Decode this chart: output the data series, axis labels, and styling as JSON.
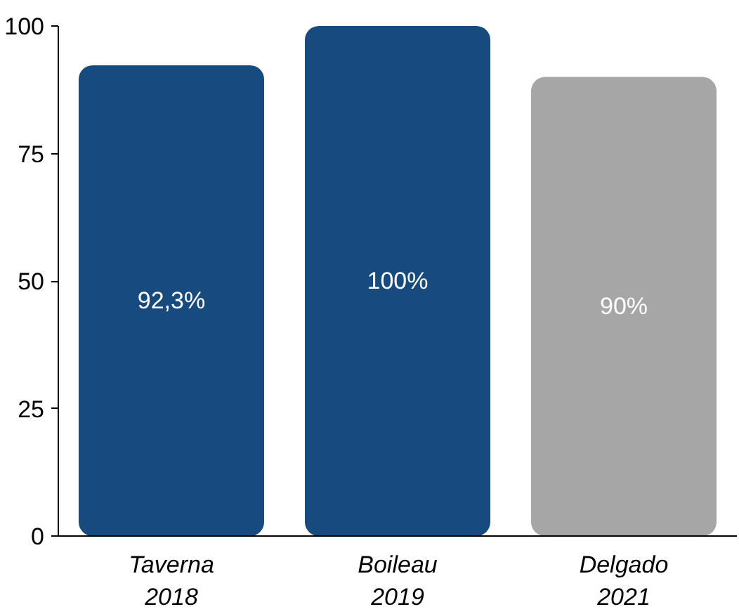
{
  "chart_data": {
    "type": "bar",
    "categories": [
      "Taverna\n2018",
      "Boileau\n2019",
      "Delgado\n2021"
    ],
    "values": [
      92.3,
      100,
      90
    ],
    "colors": [
      "#174a7e",
      "#174a7e",
      "#a6a6a6"
    ],
    "value_labels": [
      "92,3%",
      "100%",
      "90%"
    ],
    "ylim": [
      0,
      100
    ],
    "yticks": [
      0,
      25,
      50,
      75,
      100
    ],
    "grid": false
  }
}
